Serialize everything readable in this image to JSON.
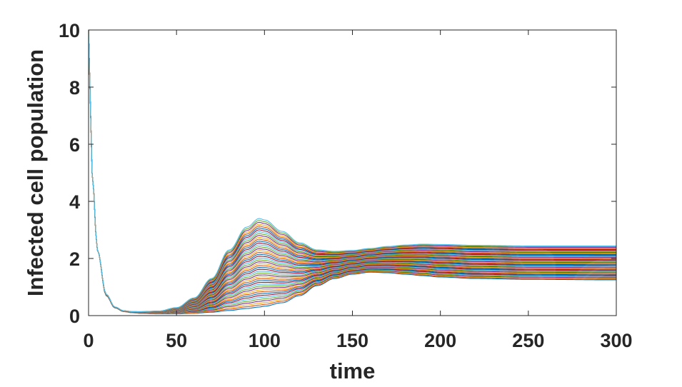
{
  "chart_data": {
    "type": "line",
    "xlabel": "time",
    "ylabel": "Infected cell population",
    "xlim": [
      0,
      300
    ],
    "ylim": [
      0,
      10
    ],
    "x_ticks": [
      0,
      50,
      100,
      150,
      200,
      250,
      300
    ],
    "y_ticks": [
      0,
      2,
      4,
      6,
      8,
      10
    ],
    "x_tick_labels": [
      "0",
      "50",
      "100",
      "150",
      "200",
      "250",
      "300"
    ],
    "y_tick_labels": [
      "0",
      "2",
      "4",
      "6",
      "8",
      "10"
    ],
    "grid": false,
    "legend": "none",
    "series_count": 48,
    "colors": [
      "#0072BD",
      "#D95319",
      "#EDB120",
      "#7E2F8E",
      "#77AC30",
      "#4DBEEE",
      "#A2142F"
    ],
    "envelope": {
      "x": [
        0,
        2,
        5,
        10,
        15,
        20,
        25,
        30,
        40,
        50,
        60,
        70,
        80,
        90,
        97,
        100,
        110,
        120,
        130,
        140,
        150,
        160,
        170,
        180,
        190,
        200,
        220,
        250,
        300
      ],
      "upper": [
        10,
        5.0,
        2.3,
        0.75,
        0.3,
        0.17,
        0.14,
        0.14,
        0.16,
        0.28,
        0.62,
        1.3,
        2.3,
        3.1,
        3.4,
        3.35,
        2.95,
        2.55,
        2.3,
        2.25,
        2.28,
        2.35,
        2.42,
        2.47,
        2.5,
        2.49,
        2.46,
        2.44,
        2.44
      ],
      "lower": [
        10,
        5.0,
        2.3,
        0.7,
        0.27,
        0.14,
        0.1,
        0.08,
        0.06,
        0.06,
        0.08,
        0.12,
        0.18,
        0.25,
        0.3,
        0.33,
        0.45,
        0.7,
        1.05,
        1.3,
        1.45,
        1.52,
        1.5,
        1.45,
        1.4,
        1.35,
        1.3,
        1.27,
        1.25
      ]
    }
  }
}
